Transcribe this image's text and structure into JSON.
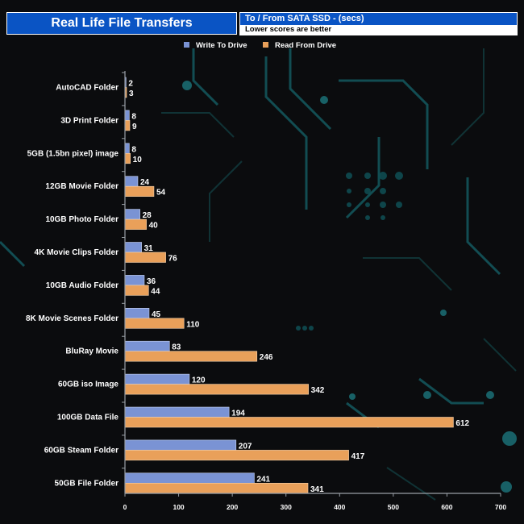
{
  "chart_data": {
    "type": "bar",
    "orientation": "horizontal",
    "title": "Real Life File Transfers",
    "subtitle_line1": "To /  From SATA SSD - (secs)",
    "subtitle_line2": "Lower scores are better",
    "categories": [
      "AutoCAD Folder",
      "3D Print Folder",
      "5GB (1.5bn pixel) image",
      "12GB Movie Folder",
      "10GB Photo Folder",
      "4K Movie Clips Folder",
      "10GB Audio Folder",
      "8K Movie Scenes Folder",
      "BluRay Movie",
      "60GB iso Image",
      "100GB Data File",
      "60GB Steam Folder",
      "50GB File Folder"
    ],
    "series": [
      {
        "name": "Write To  Drive",
        "color": "#7a93d4",
        "values": [
          2,
          8,
          8,
          24,
          28,
          31,
          36,
          45,
          83,
          120,
          194,
          207,
          241
        ]
      },
      {
        "name": "Read From  Drive",
        "color": "#e9a05a",
        "values": [
          3,
          9,
          10,
          54,
          40,
          76,
          44,
          110,
          246,
          342,
          612,
          417,
          341
        ]
      }
    ],
    "xlim": [
      0,
      700
    ],
    "xticks": [
      0,
      100,
      200,
      300,
      400,
      500,
      600,
      700
    ],
    "legend_position": "top-center",
    "grid": false
  }
}
